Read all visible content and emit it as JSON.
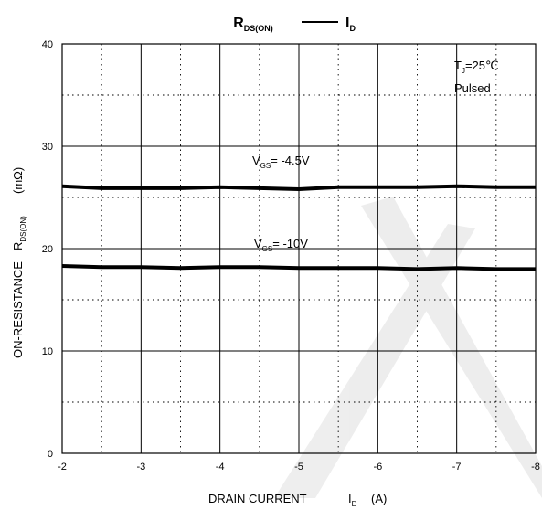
{
  "chart_data": {
    "type": "line",
    "title": {
      "left_main": "R",
      "left_sub": "DS(ON)",
      "right_main": "I",
      "right_sub": "D"
    },
    "xlabel": {
      "text": "DRAIN CURRENT",
      "symbol": "I",
      "symbol_sub": "D",
      "unit": "(A)"
    },
    "ylabel": {
      "prefix": "ON-RESISTANCE",
      "symbol": "R",
      "symbol_sub": "DS(ON)",
      "unit": "(mΩ)"
    },
    "xlim": [
      -2,
      -8
    ],
    "ylim": [
      0,
      40
    ],
    "x_ticks": [
      "-2",
      "-3",
      "-4",
      "-5",
      "-6",
      "-7",
      "-8"
    ],
    "y_ticks": [
      "0",
      "10",
      "20",
      "30",
      "40"
    ],
    "grid": "major solid, minor dotted",
    "conditions": {
      "tj_symbol": "T",
      "tj_sub": "J",
      "tj_value": "=25℃",
      "pulsed": "Pulsed"
    },
    "series": [
      {
        "label_symbol": "V",
        "label_sub": "GS",
        "label_value": "= -4.5V",
        "color": "#000000",
        "x": [
          -2,
          -2.5,
          -3,
          -3.5,
          -4,
          -4.5,
          -5,
          -5.5,
          -6,
          -6.5,
          -7,
          -7.5,
          -8
        ],
        "y": [
          26.1,
          25.9,
          25.9,
          25.9,
          26.0,
          25.9,
          25.8,
          26.0,
          26.0,
          26.0,
          26.1,
          26.0,
          26.0
        ]
      },
      {
        "label_symbol": "V",
        "label_sub": "GS",
        "label_value": "= -10V",
        "color": "#000000",
        "x": [
          -2,
          -2.5,
          -3,
          -3.5,
          -4,
          -4.5,
          -5,
          -5.5,
          -6,
          -6.5,
          -7,
          -7.5,
          -8
        ],
        "y": [
          18.3,
          18.2,
          18.2,
          18.1,
          18.2,
          18.2,
          18.1,
          18.1,
          18.1,
          18.0,
          18.1,
          18.0,
          18.0
        ]
      }
    ]
  }
}
